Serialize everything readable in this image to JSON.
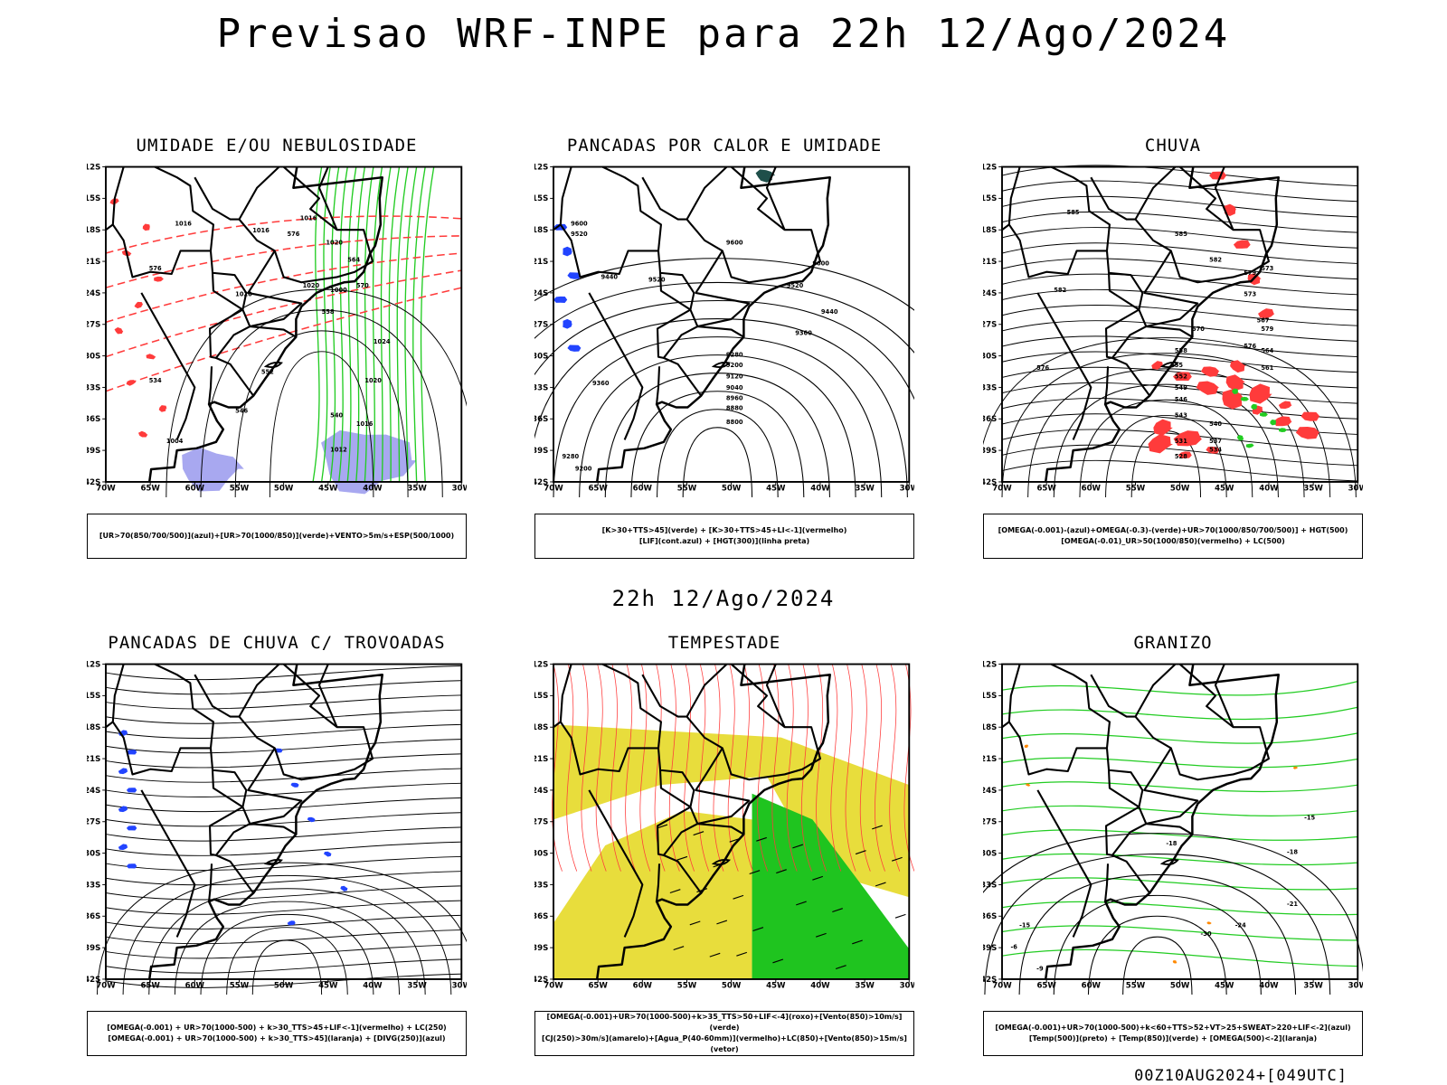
{
  "header": {
    "title": "Previsao WRF-INPE  para 22h 12/Ago/2024",
    "subtitle": "22h 12/Ago/2024",
    "footer": "00Z10AUG2024+[049UTC]"
  },
  "axes": {
    "lat_labels": [
      "12S",
      "15S",
      "18S",
      "21S",
      "24S",
      "27S",
      "30S",
      "33S",
      "36S",
      "39S",
      "42S"
    ],
    "lon_labels": [
      "70W",
      "65W",
      "60W",
      "55W",
      "50W",
      "45W",
      "40W",
      "35W",
      "30W"
    ]
  },
  "colors": {
    "red": "#ff3b3b",
    "green": "#22cc22",
    "blue": "#2244ff",
    "lavender": "#a8a8f0",
    "yellow": "#e8dd3c",
    "dark_teal": "#1f4f4a",
    "orange": "#ff8800"
  },
  "panels": [
    {
      "id": "umidade",
      "title": "UMIDADE E/OU NEBULOSIDADE",
      "legend_lines": [
        "[UR>70(850/700/500)](azul)+[UR>70(1000/850)](verde)+VENTO>5m/s+ESP(500/1000)"
      ],
      "contour_labels": [
        "1016",
        "1016",
        "1016",
        "1020",
        "1020",
        "1020",
        "1024",
        "1020",
        "1016",
        "1012",
        "1004",
        "1000",
        "576",
        "576",
        "570",
        "564",
        "558",
        "552",
        "546",
        "540",
        "534"
      ]
    },
    {
      "id": "pancadas_calor",
      "title": "PANCADAS POR CALOR E UMIDADE",
      "legend_lines": [
        "[K>30+TTS>45](verde) + [K>30+TTS>45+LI<-1](vermelho)",
        "[LIF](cont.azul) + [HGT(300)](linha preta)"
      ],
      "contour_labels": [
        "9600",
        "9520",
        "9440",
        "9520",
        "9600",
        "9520",
        "9600",
        "9440",
        "9360",
        "9280",
        "9200",
        "9120",
        "9040",
        "8960",
        "8880",
        "8800",
        "9360",
        "9280",
        "9200"
      ]
    },
    {
      "id": "chuva",
      "title": "CHUVA",
      "legend_lines": [
        "[OMEGA(-0.001)-(azul)+OMEGA(-0.3)-(verde)+UR>70(1000/850/700/500)] + HGT(500)",
        "[OMEGA(-0.01)_UR>50(1000/850)(vermelho) + LC(500)"
      ],
      "contour_labels": [
        "585",
        "585",
        "582",
        "582",
        "579",
        "579",
        "576",
        "576",
        "573",
        "573",
        "570",
        "567",
        "564",
        "561",
        "558",
        "555",
        "552",
        "549",
        "546",
        "543",
        "540",
        "537",
        "534",
        "531",
        "528"
      ]
    },
    {
      "id": "trovoadas",
      "title": "PANCADAS DE CHUVA C/ TROVOADAS",
      "legend_lines": [
        "[OMEGA(-0.001) + UR>70(1000-500) + k>30_TTS>45+LIF<-1](vermelho) + LC(250)",
        "[OMEGA(-0.001) + UR>70(1000-500) + k>30_TTS>45](laranja) + [DIVG(250)](azul)"
      ],
      "contour_labels": []
    },
    {
      "id": "tempestade",
      "title": "TEMPESTADE",
      "legend_lines": [
        "[OMEGA(-0.001)+UR>70(1000-500)+k>35_TTS>50+LIF<-4](roxo)+[Vento(850)>10m/s](verde)",
        "[CJ(250)>30m/s](amarelo)+[Agua_P(40-60mm)](vermelho)+LC(850)+[Vento(850)>15m/s](vetor)"
      ],
      "contour_labels": []
    },
    {
      "id": "granizo",
      "title": "GRANIZO",
      "legend_lines": [
        "[OMEGA(-0.001)+UR>70(1000-500)+k<60+TTS>52+VT>25+SWEAT>220+LIF<-2](azul)",
        "[Temp(500)](preto) + [Temp(850)](verde) + [OMEGA(500)<-2](laranja)"
      ],
      "contour_labels": [
        "-15",
        "-18",
        "-18",
        "-21",
        "-24",
        "-15",
        "-30",
        "-9",
        "-6"
      ]
    }
  ]
}
